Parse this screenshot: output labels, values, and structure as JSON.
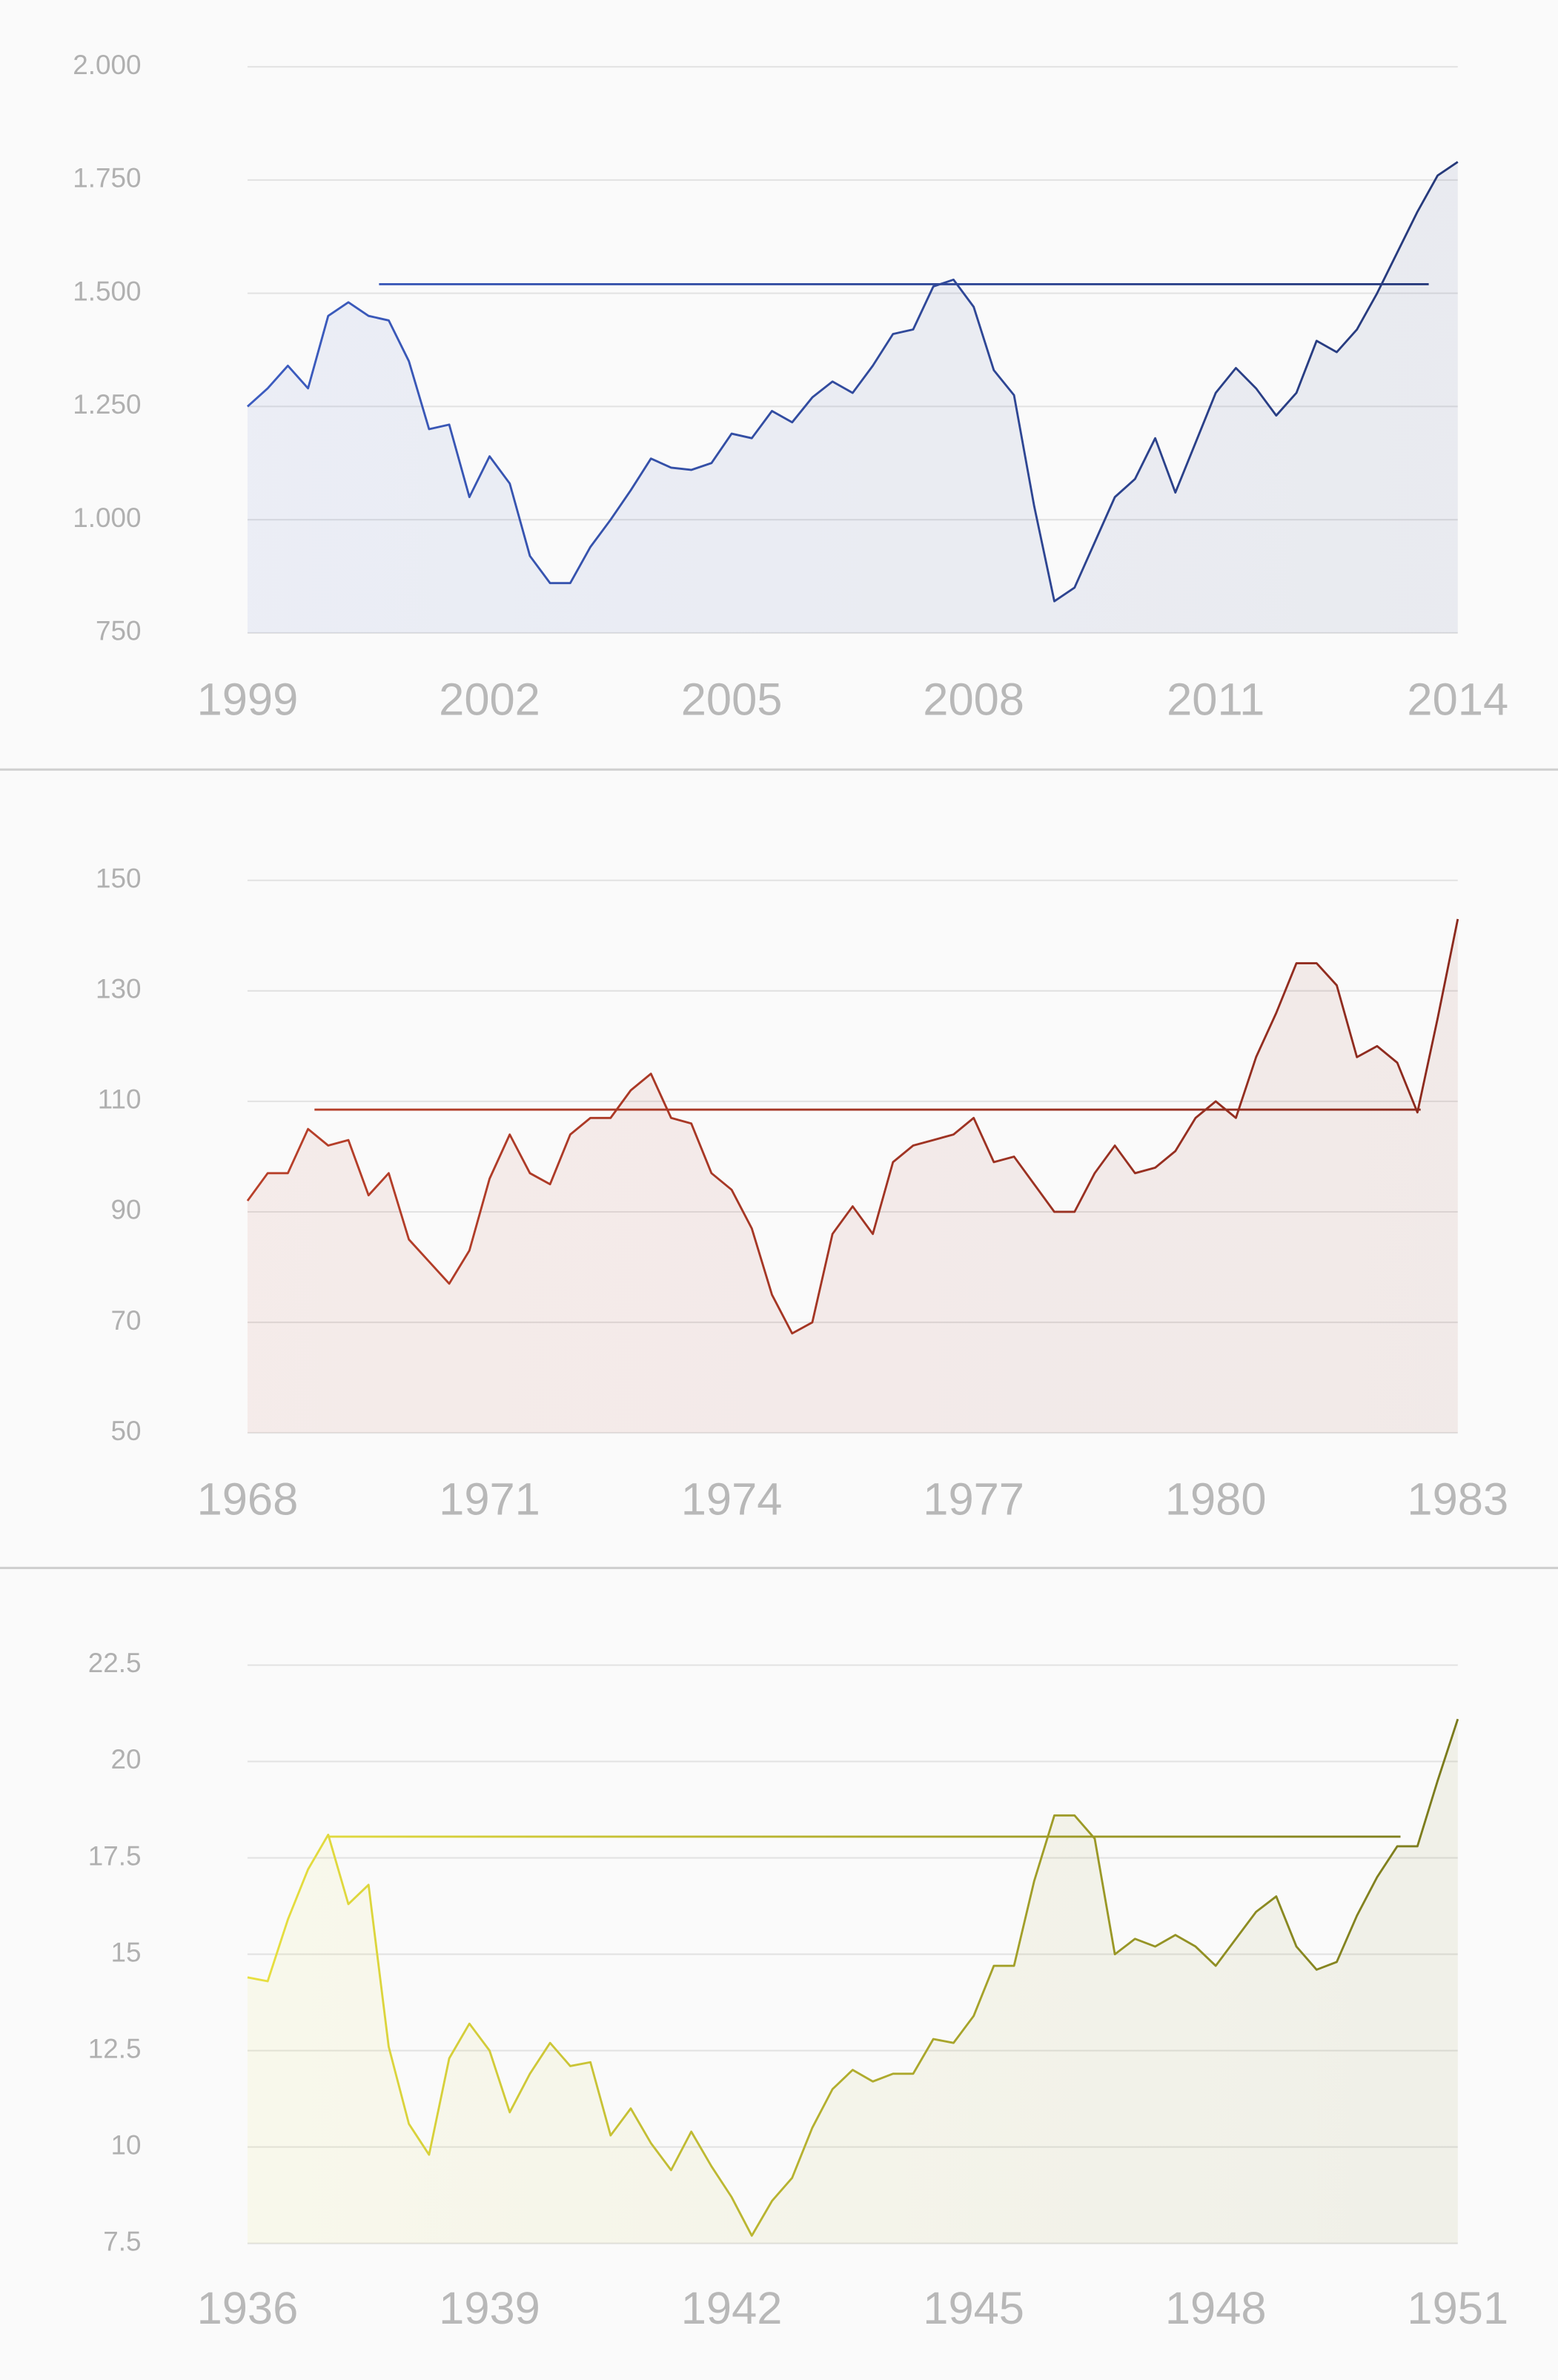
{
  "chart_data": [
    {
      "type": "line",
      "grid": true,
      "colors": [
        "#3c5cc0",
        "#26397a"
      ],
      "xlim": [
        1999,
        2014
      ],
      "xticks": [
        1999,
        2002,
        2005,
        2008,
        2011,
        2014
      ],
      "ylim": [
        750,
        2000
      ],
      "yticks": [
        750,
        {
          "value": 1000,
          "label": "1.000"
        },
        {
          "value": 1250,
          "label": "1.250"
        },
        {
          "value": 1500,
          "label": "1.500"
        },
        {
          "value": 1750,
          "label": "1.750"
        },
        {
          "value": 2000,
          "label": "2.000"
        }
      ],
      "x": [
        1999,
        1999.25,
        1999.5,
        1999.75,
        2000,
        2000.25,
        2000.5,
        2000.75,
        2001,
        2001.25,
        2001.5,
        2001.75,
        2002,
        2002.25,
        2002.5,
        2002.75,
        2003,
        2003.25,
        2003.5,
        2003.75,
        2004,
        2004.25,
        2004.5,
        2004.75,
        2005,
        2005.25,
        2005.5,
        2005.75,
        2006,
        2006.25,
        2006.5,
        2006.75,
        2007,
        2007.25,
        2007.5,
        2007.75,
        2008,
        2008.25,
        2008.5,
        2008.75,
        2009,
        2009.25,
        2009.5,
        2009.75,
        2010,
        2010.25,
        2010.5,
        2010.75,
        2011,
        2011.25,
        2011.5,
        2011.75,
        2012,
        2012.25,
        2012.5,
        2012.75,
        2013,
        2013.25,
        2013.5,
        2013.75,
        2014
      ],
      "values": [
        1250,
        1290,
        1340,
        1290,
        1450,
        1480,
        1450,
        1440,
        1350,
        1200,
        1210,
        1050,
        1140,
        1080,
        920,
        860,
        860,
        940,
        1000,
        1065,
        1135,
        1115,
        1110,
        1125,
        1190,
        1180,
        1240,
        1215,
        1270,
        1305,
        1280,
        1340,
        1410,
        1420,
        1515,
        1530,
        1470,
        1330,
        1275,
        1030,
        820,
        850,
        950,
        1050,
        1090,
        1180,
        1060,
        1170,
        1280,
        1335,
        1290,
        1230,
        1280,
        1395,
        1370,
        1420,
        1500,
        1590,
        1680,
        1760,
        1790
      ],
      "peak_line": {
        "x": [
          2000.63,
          2013.64
        ],
        "y": 1520
      }
    },
    {
      "type": "line",
      "grid": true,
      "colors": [
        "#b8402a",
        "#8c2a1e"
      ],
      "xlim": [
        1968,
        1983
      ],
      "xticks": [
        1968,
        1971,
        1974,
        1977,
        1980,
        1983
      ],
      "ylim": [
        50,
        150
      ],
      "yticks": [
        50,
        70,
        90,
        110,
        130,
        150
      ],
      "x": [
        1968,
        1968.25,
        1968.5,
        1968.75,
        1969,
        1969.25,
        1969.5,
        1969.75,
        1970,
        1970.25,
        1970.5,
        1970.75,
        1971,
        1971.25,
        1971.5,
        1971.75,
        1972,
        1972.25,
        1972.5,
        1972.75,
        1973,
        1973.25,
        1973.5,
        1973.75,
        1974,
        1974.25,
        1974.5,
        1974.75,
        1975,
        1975.25,
        1975.5,
        1975.75,
        1976,
        1976.25,
        1976.5,
        1976.75,
        1977,
        1977.25,
        1977.5,
        1977.75,
        1978,
        1978.25,
        1978.5,
        1978.75,
        1979,
        1979.25,
        1979.5,
        1979.75,
        1980,
        1980.25,
        1980.5,
        1980.75,
        1981,
        1981.25,
        1981.5,
        1981.75,
        1982,
        1982.25,
        1982.5,
        1982.75,
        1983
      ],
      "values": [
        92,
        97,
        97,
        105,
        102,
        103,
        93,
        97,
        85,
        81,
        77,
        83,
        96,
        104,
        97,
        95,
        104,
        107,
        107,
        112,
        115,
        107,
        106,
        97,
        94,
        87,
        75,
        68,
        70,
        86,
        91,
        86,
        99,
        102,
        103,
        104,
        107,
        99,
        100,
        95,
        90,
        90,
        97,
        102,
        97,
        98,
        101,
        107,
        110,
        107,
        118,
        126,
        135,
        135,
        131,
        118,
        120,
        117,
        108,
        125,
        143
      ],
      "peak_line": {
        "x": [
          1968.83,
          1982.54
        ],
        "y": 108.5
      }
    },
    {
      "type": "line",
      "grid": true,
      "colors": [
        "#e8e040",
        "#7a7a1c"
      ],
      "xlim": [
        1936,
        1951
      ],
      "xticks": [
        1936,
        1939,
        1942,
        1945,
        1948,
        1951
      ],
      "ylim": [
        7.5,
        22.5
      ],
      "yticks": [
        7.5,
        10,
        12.5,
        15,
        17.5,
        20,
        22.5
      ],
      "x": [
        1936,
        1936.25,
        1936.5,
        1936.75,
        1937,
        1937.25,
        1937.5,
        1937.75,
        1938,
        1938.25,
        1938.5,
        1938.75,
        1939,
        1939.25,
        1939.5,
        1939.75,
        1940,
        1940.25,
        1940.5,
        1940.75,
        1941,
        1941.25,
        1941.5,
        1941.75,
        1942,
        1942.25,
        1942.5,
        1942.75,
        1943,
        1943.25,
        1943.5,
        1943.75,
        1944,
        1944.25,
        1944.5,
        1944.75,
        1945,
        1945.25,
        1945.5,
        1945.75,
        1946,
        1946.25,
        1946.5,
        1946.75,
        1947,
        1947.25,
        1947.5,
        1947.75,
        1948,
        1948.25,
        1948.5,
        1948.75,
        1949,
        1949.25,
        1949.5,
        1949.75,
        1950,
        1950.25,
        1950.5,
        1950.75,
        1951
      ],
      "values": [
        14.4,
        14.3,
        15.9,
        17.2,
        18.1,
        16.3,
        16.8,
        12.6,
        10.6,
        9.8,
        12.3,
        13.2,
        12.5,
        10.9,
        11.9,
        12.7,
        12.1,
        12.2,
        10.3,
        11.0,
        10.1,
        9.4,
        10.4,
        9.5,
        8.7,
        7.7,
        8.6,
        9.2,
        10.5,
        11.5,
        12.0,
        11.7,
        11.9,
        11.9,
        12.8,
        12.7,
        13.4,
        14.7,
        14.7,
        16.9,
        18.6,
        18.6,
        18.0,
        15.0,
        15.4,
        15.2,
        15.5,
        15.2,
        14.7,
        15.4,
        16.1,
        16.5,
        15.2,
        14.6,
        14.8,
        16.0,
        17.0,
        17.8,
        17.8,
        19.5,
        21.1
      ],
      "peak_line": {
        "x": [
          1937.0,
          1950.29
        ],
        "y": 18.05
      }
    }
  ]
}
